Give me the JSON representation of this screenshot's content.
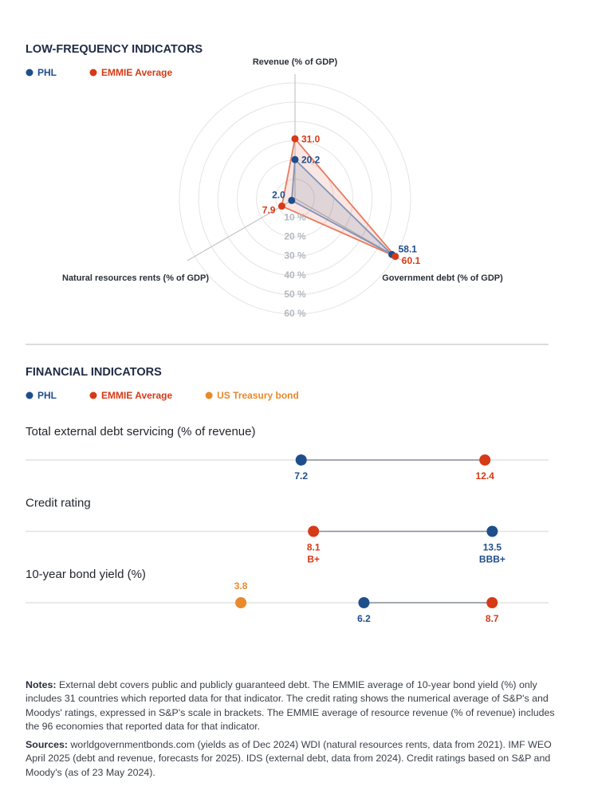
{
  "chart_data": [
    {
      "type": "radar",
      "title": "LOW-FREQUENCY INDICATORS",
      "axes": [
        "Revenue (% of GDP)",
        "Government debt (% of GDP)",
        "Natural resources rents (% of GDP)"
      ],
      "series": [
        {
          "name": "PHL",
          "color": "#1f4e8c",
          "values": [
            20.2,
            58.1,
            2.0
          ],
          "value_labels": [
            "20.2",
            "58.1",
            "2.0"
          ]
        },
        {
          "name": "EMMIE Average",
          "color": "#d63a16",
          "values": [
            31.0,
            60.1,
            7.9
          ],
          "value_labels": [
            "31.0",
            "60.1",
            "7.9"
          ]
        }
      ],
      "ylim": [
        0,
        60
      ],
      "yticks": [
        {
          "value": 10,
          "label": "10 %"
        },
        {
          "value": 20,
          "label": "20 %"
        },
        {
          "value": 30,
          "label": "30 %"
        },
        {
          "value": 40,
          "label": "40 %"
        },
        {
          "value": 50,
          "label": "50 %"
        },
        {
          "value": 60,
          "label": "60 %"
        }
      ],
      "grid": true
    },
    {
      "type": "dot",
      "title": "FINANCIAL INDICATORS",
      "categories": [
        "Total external debt servicing (% of revenue)",
        "Credit rating",
        "10-year bond yield (%)"
      ],
      "xlims": [
        [
          -0.6,
          14.2
        ],
        [
          -0.6,
          15.2
        ],
        [
          -0.4,
          9.8
        ]
      ],
      "series": [
        {
          "name": "PHL",
          "color": "#1f4e8c",
          "values": [
            7.2,
            13.5,
            6.2
          ],
          "ratings": [
            null,
            "BBB+",
            null
          ]
        },
        {
          "name": "EMMIE Average",
          "color": "#d63a16",
          "values": [
            12.4,
            8.1,
            8.7
          ],
          "ratings": [
            null,
            "B+",
            null
          ]
        },
        {
          "name": "US Treasury bond",
          "color": "#e8892b",
          "values": [
            null,
            null,
            3.8
          ]
        }
      ]
    }
  ],
  "notes": {
    "label": "Notes:",
    "text": "External debt covers public and publicly guaranteed debt. The EMMIE average of 10-year bond yield (%) only includes 31 countries which reported data for that indicator. The credit rating shows the numerical average of S&P's and Moodys' ratings, expressed in S&P's scale in brackets. The EMMIE average of resource revenue (% of revenue) includes the 96 economies that reported data for that indicator."
  },
  "sources": {
    "label": "Sources:",
    "text": "worldgovernmentbonds.com (yields as of Dec 2024) WDI (natural resources rents, data from 2021). IMF WEO April 2025 (debt and revenue, forecasts for 2025). IDS (external debt, data from 2024). Credit ratings based on S&P and Moody's (as of 23 May 2024)."
  }
}
